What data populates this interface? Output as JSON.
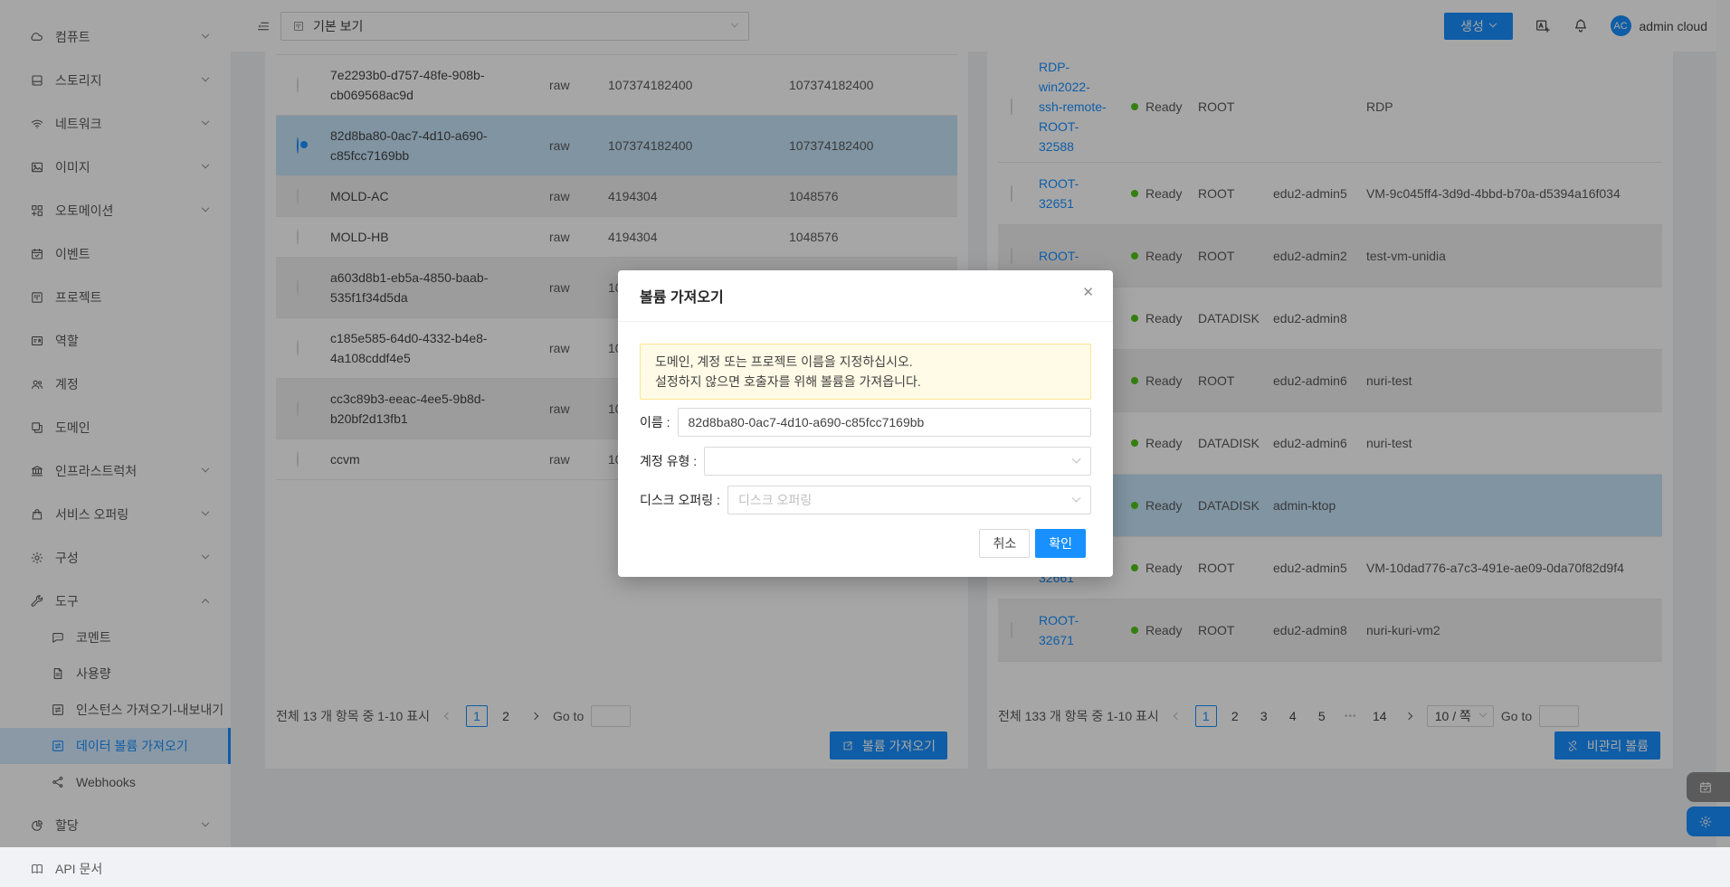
{
  "colors": {
    "primary": "#1890ff",
    "ready_dot": "#52c41a",
    "selected_row": "#c5e3f9",
    "alert_bg": "#fffbe6",
    "alert_border": "#ffe58f"
  },
  "topbar": {
    "view_select": {
      "value": "기본 보기",
      "icon": "project-icon"
    },
    "create_button": {
      "label": "생성"
    },
    "user": {
      "initials": "AC",
      "name": "admin cloud"
    }
  },
  "sidebar": {
    "items": [
      {
        "id": "compute",
        "icon": "cloud-icon",
        "label": "컴퓨트",
        "chevron": "down"
      },
      {
        "id": "storage",
        "icon": "hdd-icon",
        "label": "스토리지",
        "chevron": "down"
      },
      {
        "id": "network",
        "icon": "wifi-icon",
        "label": "네트워크",
        "chevron": "down"
      },
      {
        "id": "images",
        "icon": "picture-icon",
        "label": "이미지",
        "chevron": "down"
      },
      {
        "id": "automation",
        "icon": "automation-icon",
        "label": "오토메이션",
        "chevron": "down"
      },
      {
        "id": "events",
        "icon": "calendar-check-icon",
        "label": "이벤트"
      },
      {
        "id": "projects",
        "icon": "project-icon",
        "label": "프로젝트"
      },
      {
        "id": "roles",
        "icon": "idcard-icon",
        "label": "역할"
      },
      {
        "id": "accounts",
        "icon": "team-icon",
        "label": "계정"
      },
      {
        "id": "domains",
        "icon": "block-icon",
        "label": "도메인"
      },
      {
        "id": "infrastructure",
        "icon": "bank-icon",
        "label": "인프라스트럭처",
        "chevron": "down"
      },
      {
        "id": "service-offerings",
        "icon": "bag-icon",
        "label": "서비스 오퍼링",
        "chevron": "down"
      },
      {
        "id": "configuration",
        "icon": "gear-icon",
        "label": "구성",
        "chevron": "down"
      },
      {
        "id": "tools",
        "icon": "tool-icon",
        "label": "도구",
        "chevron": "up",
        "children": [
          {
            "id": "comments",
            "icon": "comment-icon",
            "label": "코멘트"
          },
          {
            "id": "usage",
            "icon": "file-icon",
            "label": "사용량"
          },
          {
            "id": "instance-import-export",
            "icon": "swap-box-icon",
            "label": "인스턴스 가져오기-내보내기"
          },
          {
            "id": "data-volume-import",
            "icon": "swap-box-icon",
            "label": "데이터 볼륨 가져오기",
            "selected": true
          },
          {
            "id": "webhooks",
            "icon": "webhook-icon",
            "label": "Webhooks"
          }
        ]
      },
      {
        "id": "allocation",
        "icon": "pie-icon",
        "label": "할당",
        "chevron": "down"
      },
      {
        "id": "api-doc",
        "icon": "book-icon",
        "label": "API 문서"
      }
    ]
  },
  "volumes_panel": {
    "rows": [
      {
        "name": "7e2293b0-d757-48fe-908b-cb069568ac9d",
        "format": "raw",
        "size": "107374182400",
        "virtual_size": "107374182400",
        "selected": false
      },
      {
        "name": "82d8ba80-0ac7-4d10-a690-c85fcc7169bb",
        "format": "raw",
        "size": "107374182400",
        "virtual_size": "107374182400",
        "selected": true
      },
      {
        "name": "MOLD-AC",
        "format": "raw",
        "size": "4194304",
        "virtual_size": "1048576",
        "selected": false
      },
      {
        "name": "MOLD-HB",
        "format": "raw",
        "size": "4194304",
        "virtual_size": "1048576",
        "selected": false
      },
      {
        "name": "a603d8b1-eb5a-4850-baab-535f1f34d5da",
        "format": "raw",
        "size": "107374182400",
        "virtual_size": "",
        "selected": false
      },
      {
        "name": "c185e585-64d0-4332-b4e8-4a108cddf4e5",
        "format": "raw",
        "size": "107374182400",
        "virtual_size": "",
        "selected": false
      },
      {
        "name": "cc3c89b3-eeac-4ee5-9b8d-b20bf2d13fb1",
        "format": "raw",
        "size": "107374182400",
        "virtual_size": "",
        "selected": false
      },
      {
        "name": "ccvm",
        "format": "raw",
        "size": "107374182400",
        "virtual_size": "",
        "selected": false
      }
    ],
    "pagination": {
      "summary": "전체 13 개 항목 중 1-10 표시",
      "pages": [
        "1",
        "2"
      ],
      "active_page": "1",
      "goto_label": "Go to"
    },
    "import_button": {
      "label": "볼륨 가져오기",
      "icon": "export-box-icon"
    }
  },
  "managed_panel": {
    "rows": [
      {
        "name": "RDP-win2022-ssh-remote-ROOT-32588",
        "name_lines": [
          "RDP-",
          "win2022-",
          "ssh-remote-",
          "ROOT-",
          "32588"
        ],
        "state": "Ready",
        "type": "ROOT",
        "account": "",
        "vm": "RDP",
        "selected": false
      },
      {
        "name": "ROOT-32651",
        "name_lines": [
          "ROOT-",
          "32651"
        ],
        "state": "Ready",
        "type": "ROOT",
        "account": "edu2-admin5",
        "vm": "VM-9c045ff4-3d9d-4bbd-b70a-d5394a16f034",
        "selected": false
      },
      {
        "name": "ROOT-",
        "name_lines": [
          "ROOT-"
        ],
        "state": "Ready",
        "type": "ROOT",
        "account": "edu2-admin2",
        "vm": "test-vm-unidia",
        "selected": false
      },
      {
        "name": "",
        "name_lines": [],
        "state": "Ready",
        "type": "DATADISK",
        "account": "edu2-admin8",
        "vm": "",
        "selected": false
      },
      {
        "name": "",
        "name_lines": [],
        "state": "Ready",
        "type": "ROOT",
        "account": "edu2-admin6",
        "vm": "nuri-test",
        "selected": false
      },
      {
        "name": "",
        "name_lines": [],
        "state": "Ready",
        "type": "DATADISK",
        "account": "edu2-admin6",
        "vm": "nuri-test",
        "selected": false
      },
      {
        "name": "",
        "name_lines": [],
        "state": "Ready",
        "type": "DATADISK",
        "account": "admin-ktop",
        "vm": "",
        "selected": true
      },
      {
        "name": "ROOT-32661",
        "name_lines": [
          "ROOT-",
          "32661"
        ],
        "state": "Ready",
        "type": "ROOT",
        "account": "edu2-admin5",
        "vm": "VM-10dad776-a7c3-491e-ae09-0da70f82d9f4",
        "selected": false
      },
      {
        "name": "ROOT-32671",
        "name_lines": [
          "ROOT-",
          "32671"
        ],
        "state": "Ready",
        "type": "ROOT",
        "account": "edu2-admin8",
        "vm": "nuri-kuri-vm2",
        "selected": false
      }
    ],
    "pagination": {
      "summary": "전체 133 개 항목 중 1-10 표시",
      "pages": [
        "1",
        "2",
        "3",
        "4",
        "5",
        "•••",
        "14"
      ],
      "active_page": "1",
      "page_size": "10 / 쪽",
      "goto_label": "Go to"
    },
    "unmanage_button": {
      "label": "비관리 볼륨",
      "icon": "disconnect-icon"
    }
  },
  "modal": {
    "title": "볼륨 가져오기",
    "alert_lines": [
      "도메인, 계정 또는 프로젝트 이름을 지정하십시오.",
      "설정하지 않으면 호출자를 위해 볼륨을 가져옵니다."
    ],
    "fields": [
      {
        "label": "이름 :",
        "type": "input",
        "value": "82d8ba80-0ac7-4d10-a690-c85fcc7169bb"
      },
      {
        "label": "계정 유형 :",
        "type": "select",
        "value": "",
        "placeholder": ""
      },
      {
        "label": "디스크 오퍼링 :",
        "type": "select",
        "value": "",
        "placeholder": "디스크 오퍼링"
      }
    ],
    "cancel_label": "취소",
    "ok_label": "확인"
  },
  "floating_buttons": [
    {
      "id": "events-shortcut",
      "icon": "calendar-check-icon"
    },
    {
      "id": "settings-shortcut",
      "icon": "gear-icon"
    }
  ]
}
